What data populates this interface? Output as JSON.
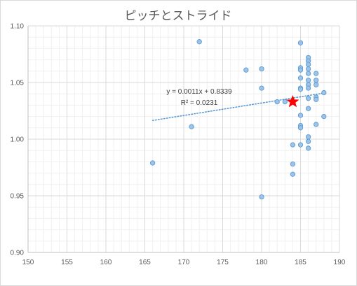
{
  "chart_data": {
    "type": "scatter",
    "title": "ピッチとストライド",
    "xlabel": "",
    "ylabel": "",
    "xlim": [
      150,
      190
    ],
    "ylim": [
      0.9,
      1.1
    ],
    "xticks": [
      "150",
      "155",
      "160",
      "165",
      "170",
      "175",
      "180",
      "185",
      "190"
    ],
    "yticks": [
      "0.90",
      "0.95",
      "1.00",
      "1.05",
      "1.10"
    ],
    "grid": true,
    "series": [
      {
        "marker_color": "#9dc3e6",
        "marker_edge": "#5b9bd5",
        "points": [
          [
            166,
            0.979
          ],
          [
            171,
            1.011
          ],
          [
            172,
            1.086
          ],
          [
            178,
            1.061
          ],
          [
            180,
            1.062
          ],
          [
            180,
            1.045
          ],
          [
            180,
            0.949
          ],
          [
            182,
            1.033
          ],
          [
            183,
            1.033
          ],
          [
            184,
            0.995
          ],
          [
            184,
            0.978
          ],
          [
            184,
            0.969
          ],
          [
            185,
            1.085
          ],
          [
            185,
            1.063
          ],
          [
            185,
            1.061
          ],
          [
            185,
            1.054
          ],
          [
            185,
            1.045
          ],
          [
            185,
            1.044
          ],
          [
            185,
            1.021
          ],
          [
            185,
            1.012
          ],
          [
            185,
            1.01
          ],
          [
            185,
            0.995
          ],
          [
            186,
            1.072
          ],
          [
            186,
            1.069
          ],
          [
            186,
            1.066
          ],
          [
            186,
            1.062
          ],
          [
            186,
            1.058
          ],
          [
            186,
            1.052
          ],
          [
            186,
            1.048
          ],
          [
            186,
            1.045
          ],
          [
            186,
            1.036
          ],
          [
            186,
            1.027
          ],
          [
            186,
            1.002
          ],
          [
            186,
            0.998
          ],
          [
            186,
            0.992
          ],
          [
            187,
            1.058
          ],
          [
            187,
            1.052
          ],
          [
            187,
            1.048
          ],
          [
            187,
            1.037
          ],
          [
            187,
            1.035
          ],
          [
            187,
            1.013
          ],
          [
            188,
            1.041
          ],
          [
            188,
            1.02
          ]
        ]
      }
    ],
    "highlight": {
      "x": 184,
      "y": 1.033,
      "marker": "star",
      "color": "#ff0000"
    },
    "trendline": {
      "type": "linear",
      "slope": 0.0011,
      "intercept": 0.8339,
      "x_range": [
        166,
        188
      ],
      "color": "#5b9bd5",
      "equation": "y = 0.0011x + 0.8339",
      "r_squared": "R² = 0.0231"
    }
  }
}
